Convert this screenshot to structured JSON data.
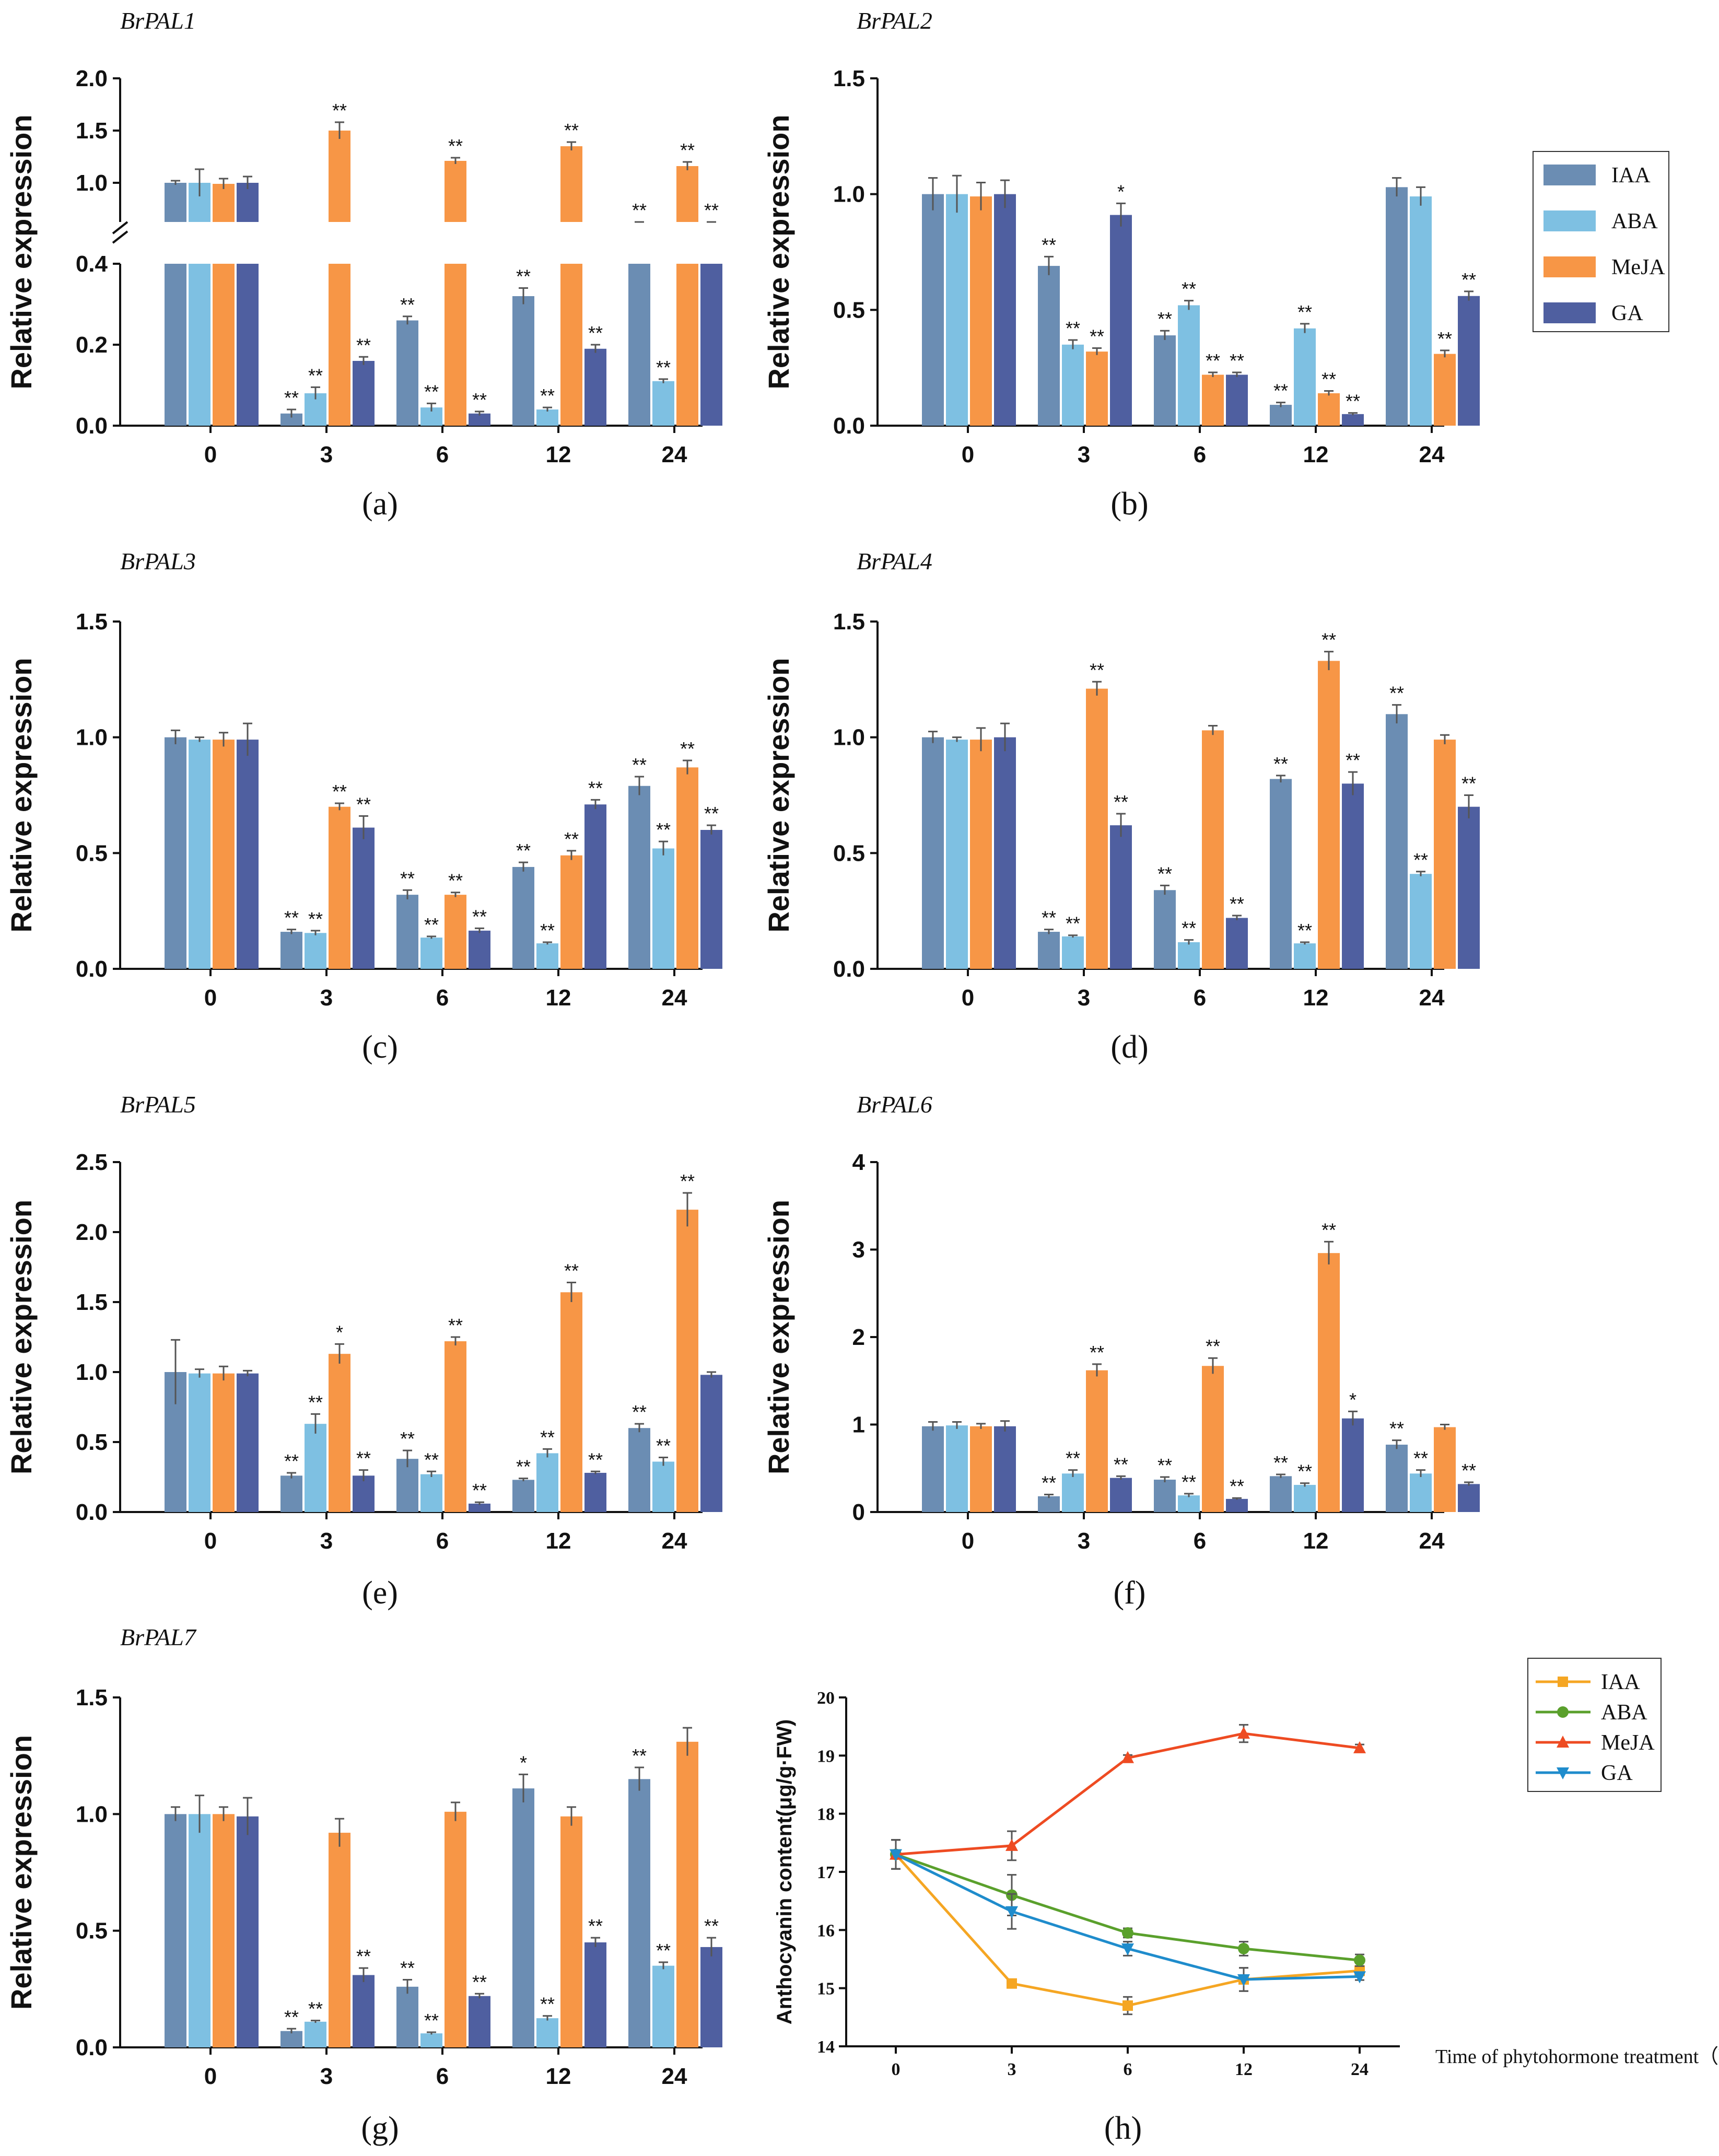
{
  "colors": {
    "IAA": "#6b8db3",
    "ABA": "#7ec0e2",
    "MeJA": "#f79646",
    "GA": "#4f5fa0",
    "line_IAA": "#f5a623",
    "line_ABA": "#5aa02c",
    "line_MeJA": "#ee4b22",
    "line_GA": "#1f8ccc"
  },
  "legend": {
    "items": [
      "IAA",
      "ABA",
      "MeJA",
      "GA"
    ]
  },
  "chart_data": [
    {
      "type": "bar",
      "panel": "(a)",
      "title": "BrPAL1",
      "ylabel": "Relative expression",
      "categories": [
        "0",
        "3",
        "6",
        "12",
        "24"
      ],
      "broken_axis": {
        "lower": [
          0,
          0.4
        ],
        "upper": [
          0.4,
          2.0
        ]
      },
      "yticks_lower": [
        "0.0",
        "0.2",
        "0.4"
      ],
      "yticks_upper": [
        "1.0",
        "1.5",
        "2.0"
      ],
      "series": [
        {
          "name": "IAA",
          "values": [
            1.0,
            0.03,
            0.26,
            0.32,
            0.53
          ],
          "errors": [
            0.02,
            0.01,
            0.01,
            0.02,
            0.04
          ],
          "sig": [
            "",
            "**",
            "**",
            "**",
            "**"
          ]
        },
        {
          "name": "ABA",
          "values": [
            1.0,
            0.08,
            0.045,
            0.04,
            0.11
          ],
          "errors": [
            0.13,
            0.015,
            0.01,
            0.005,
            0.005
          ],
          "sig": [
            "",
            "**",
            "**",
            "**",
            "**"
          ]
        },
        {
          "name": "MeJA",
          "values": [
            0.99,
            1.5,
            1.21,
            1.35,
            1.16
          ],
          "errors": [
            0.05,
            0.08,
            0.03,
            0.04,
            0.04
          ],
          "sig": [
            "",
            "**",
            "**",
            "**",
            "**"
          ]
        },
        {
          "name": "GA",
          "values": [
            1.0,
            0.16,
            0.03,
            0.19,
            0.58
          ],
          "errors": [
            0.06,
            0.01,
            0.005,
            0.01,
            0.02
          ],
          "sig": [
            "",
            "**",
            "**",
            "**",
            "**"
          ]
        }
      ]
    },
    {
      "type": "bar",
      "panel": "(b)",
      "title": "BrPAL2",
      "ylabel": "Relative expression",
      "categories": [
        "0",
        "3",
        "6",
        "12",
        "24"
      ],
      "ylim": [
        0,
        1.5
      ],
      "yticks": [
        "0.0",
        "0.5",
        "1.0",
        "1.5"
      ],
      "series": [
        {
          "name": "IAA",
          "values": [
            1.0,
            0.69,
            0.39,
            0.09,
            1.03
          ],
          "errors": [
            0.07,
            0.04,
            0.02,
            0.01,
            0.04
          ],
          "sig": [
            "",
            "**",
            "**",
            "**",
            ""
          ]
        },
        {
          "name": "ABA",
          "values": [
            1.0,
            0.35,
            0.52,
            0.42,
            0.99
          ],
          "errors": [
            0.08,
            0.02,
            0.02,
            0.02,
            0.04
          ],
          "sig": [
            "",
            "**",
            "**",
            "**",
            ""
          ]
        },
        {
          "name": "MeJA",
          "values": [
            0.99,
            0.32,
            0.22,
            0.14,
            0.31
          ],
          "errors": [
            0.06,
            0.015,
            0.01,
            0.01,
            0.015
          ],
          "sig": [
            "",
            "**",
            "**",
            "**",
            "**"
          ]
        },
        {
          "name": "GA",
          "values": [
            1.0,
            0.91,
            0.22,
            0.05,
            0.56
          ],
          "errors": [
            0.06,
            0.05,
            0.01,
            0.005,
            0.02
          ],
          "sig": [
            "",
            "*",
            "**",
            "**",
            "**"
          ]
        }
      ]
    },
    {
      "type": "bar",
      "panel": "(c)",
      "title": "BrPAL3",
      "ylabel": "Relative expression",
      "categories": [
        "0",
        "3",
        "6",
        "12",
        "24"
      ],
      "ylim": [
        0,
        1.5
      ],
      "yticks": [
        "0.0",
        "0.5",
        "1.0",
        "1.5"
      ],
      "series": [
        {
          "name": "IAA",
          "values": [
            1.0,
            0.16,
            0.32,
            0.44,
            0.79
          ],
          "errors": [
            0.03,
            0.01,
            0.02,
            0.02,
            0.04
          ],
          "sig": [
            "",
            "**",
            "**",
            "**",
            "**"
          ]
        },
        {
          "name": "ABA",
          "values": [
            0.99,
            0.155,
            0.135,
            0.11,
            0.52
          ],
          "errors": [
            0.01,
            0.01,
            0.005,
            0.005,
            0.03
          ],
          "sig": [
            "",
            "**",
            "**",
            "**",
            "**"
          ]
        },
        {
          "name": "MeJA",
          "values": [
            0.99,
            0.7,
            0.32,
            0.49,
            0.87
          ],
          "errors": [
            0.03,
            0.015,
            0.01,
            0.02,
            0.03
          ],
          "sig": [
            "",
            "**",
            "**",
            "**",
            "**"
          ]
        },
        {
          "name": "GA",
          "values": [
            0.99,
            0.61,
            0.165,
            0.71,
            0.6
          ],
          "errors": [
            0.07,
            0.05,
            0.01,
            0.02,
            0.02
          ],
          "sig": [
            "",
            "**",
            "**",
            "**",
            "**"
          ]
        }
      ]
    },
    {
      "type": "bar",
      "panel": "(d)",
      "title": "BrPAL4",
      "ylabel": "Relative expression",
      "categories": [
        "0",
        "3",
        "6",
        "12",
        "24"
      ],
      "ylim": [
        0,
        1.5
      ],
      "yticks": [
        "0.0",
        "0.5",
        "1.0",
        "1.5"
      ],
      "series": [
        {
          "name": "IAA",
          "values": [
            1.0,
            0.16,
            0.34,
            0.82,
            1.1
          ],
          "errors": [
            0.025,
            0.01,
            0.02,
            0.015,
            0.04
          ],
          "sig": [
            "",
            "**",
            "**",
            "**",
            "**"
          ]
        },
        {
          "name": "ABA",
          "values": [
            0.99,
            0.14,
            0.115,
            0.11,
            0.41
          ],
          "errors": [
            0.01,
            0.005,
            0.01,
            0.005,
            0.01
          ],
          "sig": [
            "",
            "**",
            "**",
            "**",
            "**"
          ]
        },
        {
          "name": "MeJA",
          "values": [
            0.99,
            1.21,
            1.03,
            1.33,
            0.99
          ],
          "errors": [
            0.05,
            0.03,
            0.02,
            0.04,
            0.02
          ],
          "sig": [
            "",
            "**",
            "",
            "**",
            ""
          ]
        },
        {
          "name": "GA",
          "values": [
            1.0,
            0.62,
            0.22,
            0.8,
            0.7
          ],
          "errors": [
            0.06,
            0.05,
            0.01,
            0.05,
            0.05
          ],
          "sig": [
            "",
            "**",
            "**",
            "**",
            "**"
          ]
        }
      ]
    },
    {
      "type": "bar",
      "panel": "(e)",
      "title": "BrPAL5",
      "ylabel": "Relative expression",
      "categories": [
        "0",
        "3",
        "6",
        "12",
        "24"
      ],
      "ylim": [
        0,
        2.5
      ],
      "yticks": [
        "0.0",
        "0.5",
        "1.0",
        "1.5",
        "2.0",
        "2.5"
      ],
      "series": [
        {
          "name": "IAA",
          "values": [
            1.0,
            0.26,
            0.38,
            0.23,
            0.6
          ],
          "errors": [
            0.23,
            0.02,
            0.06,
            0.01,
            0.03
          ],
          "sig": [
            "",
            "**",
            "**",
            "**",
            "**"
          ]
        },
        {
          "name": "ABA",
          "values": [
            0.99,
            0.63,
            0.27,
            0.42,
            0.36
          ],
          "errors": [
            0.03,
            0.07,
            0.02,
            0.03,
            0.03
          ],
          "sig": [
            "",
            "**",
            "**",
            "**",
            "**"
          ]
        },
        {
          "name": "MeJA",
          "values": [
            0.99,
            1.13,
            1.22,
            1.57,
            2.16
          ],
          "errors": [
            0.05,
            0.07,
            0.03,
            0.07,
            0.12
          ],
          "sig": [
            "",
            "*",
            "**",
            "**",
            "**"
          ]
        },
        {
          "name": "GA",
          "values": [
            0.99,
            0.26,
            0.06,
            0.28,
            0.98
          ],
          "errors": [
            0.02,
            0.04,
            0.01,
            0.01,
            0.02
          ],
          "sig": [
            "",
            "**",
            "**",
            "**",
            ""
          ]
        }
      ]
    },
    {
      "type": "bar",
      "panel": "(f)",
      "title": "BrPAL6",
      "ylabel": "Relative expression",
      "categories": [
        "0",
        "3",
        "6",
        "12",
        "24"
      ],
      "ylim": [
        0,
        4
      ],
      "yticks": [
        "0",
        "1",
        "2",
        "3",
        "4"
      ],
      "series": [
        {
          "name": "IAA",
          "values": [
            0.98,
            0.18,
            0.37,
            0.41,
            0.77
          ],
          "errors": [
            0.05,
            0.02,
            0.03,
            0.02,
            0.05
          ],
          "sig": [
            "",
            "**",
            "**",
            "**",
            "**"
          ]
        },
        {
          "name": "ABA",
          "values": [
            0.99,
            0.44,
            0.19,
            0.31,
            0.44
          ],
          "errors": [
            0.04,
            0.04,
            0.02,
            0.02,
            0.04
          ],
          "sig": [
            "",
            "**",
            "**",
            "**",
            "**"
          ]
        },
        {
          "name": "MeJA",
          "values": [
            0.98,
            1.62,
            1.67,
            2.96,
            0.97
          ],
          "errors": [
            0.03,
            0.07,
            0.09,
            0.13,
            0.03
          ],
          "sig": [
            "",
            "**",
            "**",
            "**",
            ""
          ]
        },
        {
          "name": "GA",
          "values": [
            0.98,
            0.39,
            0.15,
            1.07,
            0.32
          ],
          "errors": [
            0.06,
            0.02,
            0.01,
            0.08,
            0.02
          ],
          "sig": [
            "",
            "**",
            "**",
            "*",
            "**"
          ]
        }
      ]
    },
    {
      "type": "bar",
      "panel": "(g)",
      "title": "BrPAL7",
      "ylabel": "Relative expression",
      "categories": [
        "0",
        "3",
        "6",
        "12",
        "24"
      ],
      "ylim": [
        0,
        1.5
      ],
      "yticks": [
        "0.0",
        "0.5",
        "1.0",
        "1.5"
      ],
      "series": [
        {
          "name": "IAA",
          "values": [
            1.0,
            0.07,
            0.26,
            1.11,
            1.15
          ],
          "errors": [
            0.03,
            0.01,
            0.03,
            0.06,
            0.05
          ],
          "sig": [
            "",
            "**",
            "**",
            "*",
            "**"
          ]
        },
        {
          "name": "ABA",
          "values": [
            1.0,
            0.11,
            0.06,
            0.125,
            0.35
          ],
          "errors": [
            0.08,
            0.005,
            0.005,
            0.01,
            0.015
          ],
          "sig": [
            "",
            "**",
            "**",
            "**",
            "**"
          ]
        },
        {
          "name": "MeJA",
          "values": [
            1.0,
            0.92,
            1.01,
            0.99,
            1.31
          ],
          "errors": [
            0.03,
            0.06,
            0.04,
            0.04,
            0.06
          ],
          "sig": [
            "",
            "",
            "",
            "",
            ""
          ]
        },
        {
          "name": "GA",
          "values": [
            0.99,
            0.31,
            0.22,
            0.45,
            0.43
          ],
          "errors": [
            0.08,
            0.03,
            0.01,
            0.02,
            0.04
          ],
          "sig": [
            "",
            "**",
            "**",
            "**",
            "**"
          ]
        }
      ]
    },
    {
      "type": "line",
      "panel": "(h)",
      "ylabel": "Anthocyanin content(μg/g·FW)",
      "xlabel": "Time of phytohormone treatment（h）",
      "categories": [
        "0",
        "3",
        "6",
        "12",
        "24"
      ],
      "ylim": [
        14,
        20
      ],
      "yticks": [
        "14",
        "15",
        "16",
        "17",
        "18",
        "19",
        "20"
      ],
      "series": [
        {
          "name": "IAA",
          "values": [
            17.3,
            15.08,
            14.7,
            15.15,
            15.3
          ],
          "errors": [
            0.25,
            0.05,
            0.15,
            0.2,
            0.08
          ]
        },
        {
          "name": "ABA",
          "values": [
            17.3,
            16.6,
            15.95,
            15.68,
            15.48
          ],
          "errors": [
            0.25,
            0.35,
            0.08,
            0.12,
            0.1
          ]
        },
        {
          "name": "MeJA",
          "values": [
            17.3,
            17.45,
            18.96,
            19.38,
            19.13
          ],
          "errors": [
            0.25,
            0.25,
            0.05,
            0.15,
            0.06
          ]
        },
        {
          "name": "GA",
          "values": [
            17.3,
            16.32,
            15.68,
            15.15,
            15.2
          ],
          "errors": [
            0.25,
            0.3,
            0.12,
            0.2,
            0.06
          ]
        }
      ]
    }
  ]
}
